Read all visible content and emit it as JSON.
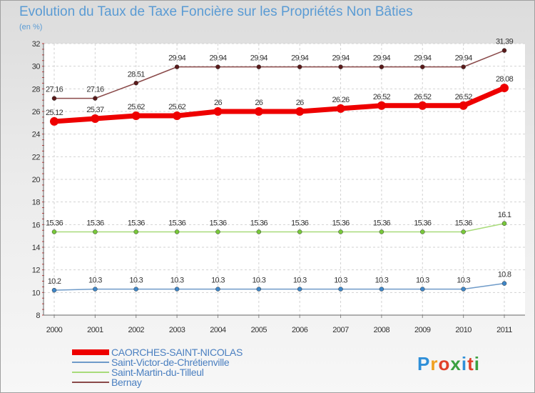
{
  "chart_data": {
    "type": "line",
    "title": "Evolution du Taux de Taxe Foncière sur les Propriétés Non Bâties",
    "subtitle": "(en %)",
    "xlabel": "",
    "ylabel": "",
    "categories": [
      "2000",
      "2001",
      "2002",
      "2003",
      "2004",
      "2005",
      "2006",
      "2007",
      "2008",
      "2009",
      "2010",
      "2011"
    ],
    "ylim": [
      8,
      32
    ],
    "yticks": [
      "8",
      "10",
      "12",
      "14",
      "16",
      "18",
      "20",
      "22",
      "24",
      "26",
      "28",
      "30",
      "32"
    ],
    "grid": true,
    "legend_position": "bottom-left",
    "series": [
      {
        "name": "CAORCHES-SAINT-NICOLAS",
        "color": "#ee0000",
        "emphasis": "thick",
        "values": [
          25.12,
          25.37,
          25.62,
          25.62,
          26,
          26,
          26,
          26.26,
          26.52,
          26.52,
          26.52,
          28.08
        ],
        "labels": [
          "25.12",
          "25.37",
          "25.62",
          "25.62",
          "26",
          "26",
          "26",
          "26.26",
          "26.52",
          "26.52",
          "26.52",
          "28.08"
        ]
      },
      {
        "name": "Saint-Victor-de-Chrétienville",
        "color": "#6f9bc9",
        "marker_color": "#3f87c8",
        "values": [
          10.2,
          10.3,
          10.3,
          10.3,
          10.3,
          10.3,
          10.3,
          10.3,
          10.3,
          10.3,
          10.3,
          10.8
        ],
        "labels": [
          "10.2",
          "10.3",
          "10.3",
          "10.3",
          "10.3",
          "10.3",
          "10.3",
          "10.3",
          "10.3",
          "10.3",
          "10.3",
          "10.8"
        ]
      },
      {
        "name": "Saint-Martin-du-Tilleul",
        "color": "#a8db7a",
        "marker_color": "#78c83a",
        "values": [
          15.36,
          15.36,
          15.36,
          15.36,
          15.36,
          15.36,
          15.36,
          15.36,
          15.36,
          15.36,
          15.36,
          16.1
        ],
        "labels": [
          "15.36",
          "15.36",
          "15.36",
          "15.36",
          "15.36",
          "15.36",
          "15.36",
          "15.36",
          "15.36",
          "15.36",
          "15.36",
          "16.1"
        ]
      },
      {
        "name": "Bernay",
        "color": "#8a4a4a",
        "marker_color": "#5a1a1a",
        "values": [
          27.16,
          27.16,
          28.51,
          29.94,
          29.94,
          29.94,
          29.94,
          29.94,
          29.94,
          29.94,
          29.94,
          31.39
        ],
        "labels": [
          "27.16",
          "27.16",
          "28.51",
          "29.94",
          "29.94",
          "29.94",
          "29.94",
          "29.94",
          "29.94",
          "29.94",
          "29.94",
          "31.39"
        ]
      }
    ]
  },
  "logo": {
    "text": "Proxiti",
    "letter_colors": [
      "#2f8fd8",
      "#f0a020",
      "#e0402a",
      "#3aa040",
      "#2f8fd8",
      "#e0402a",
      "#3aa040"
    ]
  }
}
